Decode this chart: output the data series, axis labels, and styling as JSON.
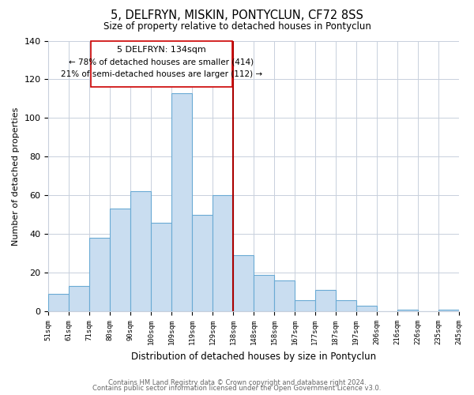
{
  "title": "5, DELFRYN, MISKIN, PONTYCLUN, CF72 8SS",
  "subtitle": "Size of property relative to detached houses in Pontyclun",
  "xlabel": "Distribution of detached houses by size in Pontyclun",
  "ylabel": "Number of detached properties",
  "categories": [
    "51sqm",
    "61sqm",
    "71sqm",
    "80sqm",
    "90sqm",
    "100sqm",
    "109sqm",
    "119sqm",
    "129sqm",
    "138sqm",
    "148sqm",
    "158sqm",
    "167sqm",
    "177sqm",
    "187sqm",
    "197sqm",
    "206sqm",
    "216sqm",
    "226sqm",
    "235sqm",
    "245sqm"
  ],
  "values": [
    9,
    13,
    38,
    53,
    62,
    46,
    113,
    50,
    60,
    29,
    19,
    16,
    6,
    11,
    6,
    3,
    0,
    1,
    0,
    1
  ],
  "bar_color": "#c9ddf0",
  "bar_edge_color": "#6aaad4",
  "vline_color": "#aa0000",
  "ylim": [
    0,
    140
  ],
  "yticks": [
    0,
    20,
    40,
    60,
    80,
    100,
    120,
    140
  ],
  "annotation_title": "5 DELFRYN: 134sqm",
  "annotation_line1": "← 78% of detached houses are smaller (414)",
  "annotation_line2": "21% of semi-detached houses are larger (112) →",
  "annotation_box_color": "#ffffff",
  "annotation_box_edge": "#cc0000",
  "footer1": "Contains HM Land Registry data © Crown copyright and database right 2024.",
  "footer2": "Contains public sector information licensed under the Open Government Licence v3.0.",
  "background_color": "#ffffff",
  "grid_color": "#c8d0dc"
}
